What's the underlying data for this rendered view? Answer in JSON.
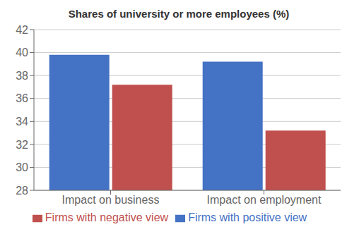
{
  "chart_data": {
    "type": "bar",
    "title": "Shares of university or more employees (%)",
    "categories": [
      "Impact on business",
      "Impact on employment"
    ],
    "series": [
      {
        "name": "Firms with positive view",
        "color": "#4472C4",
        "values": [
          39.8,
          39.2
        ]
      },
      {
        "name": "Firms with negative view",
        "color": "#C0504D",
        "values": [
          37.2,
          33.2
        ]
      }
    ],
    "ylim": [
      28,
      42
    ],
    "yticks": [
      28,
      30,
      32,
      34,
      36,
      38,
      40,
      42
    ],
    "grid": true,
    "legend": "bottom"
  }
}
